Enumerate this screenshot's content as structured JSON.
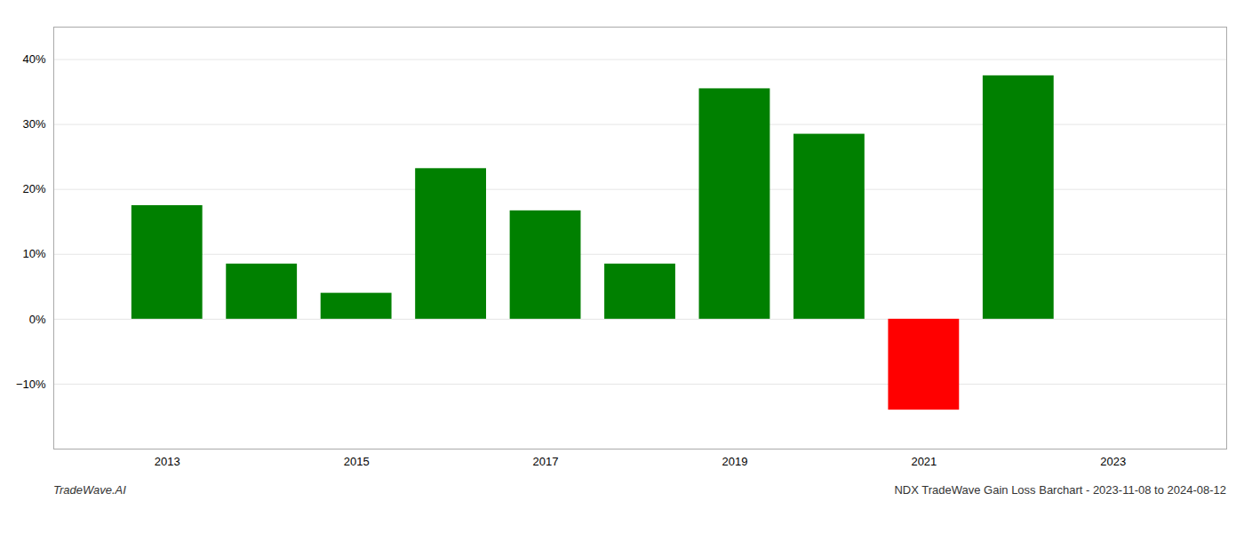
{
  "chart_data": {
    "type": "bar",
    "x": [
      2013,
      2014,
      2015,
      2016,
      2017,
      2018,
      2019,
      2020,
      2021,
      2022
    ],
    "values": [
      17.5,
      8.5,
      4.0,
      23.2,
      16.7,
      8.5,
      35.5,
      28.5,
      -14.0,
      37.5
    ],
    "colors": [
      "#008000",
      "#008000",
      "#008000",
      "#008000",
      "#008000",
      "#008000",
      "#008000",
      "#008000",
      "#ff0000",
      "#008000"
    ],
    "xlim": [
      2011.8,
      2024.2
    ],
    "xticks": [
      2013,
      2015,
      2017,
      2019,
      2021,
      2023
    ],
    "ylim": [
      -20,
      45
    ],
    "yticks": [
      {
        "value": -10,
        "label": "−10%"
      },
      {
        "value": 0,
        "label": "0%"
      },
      {
        "value": 10,
        "label": "10%"
      },
      {
        "value": 20,
        "label": "20%"
      },
      {
        "value": 30,
        "label": "30%"
      },
      {
        "value": 40,
        "label": "40%"
      }
    ],
    "grid": true,
    "annotations": [
      "TradeWave.AI",
      "NDX TradeWave Gain Loss Barchart - 2023-11-08 to 2024-08-12"
    ]
  }
}
